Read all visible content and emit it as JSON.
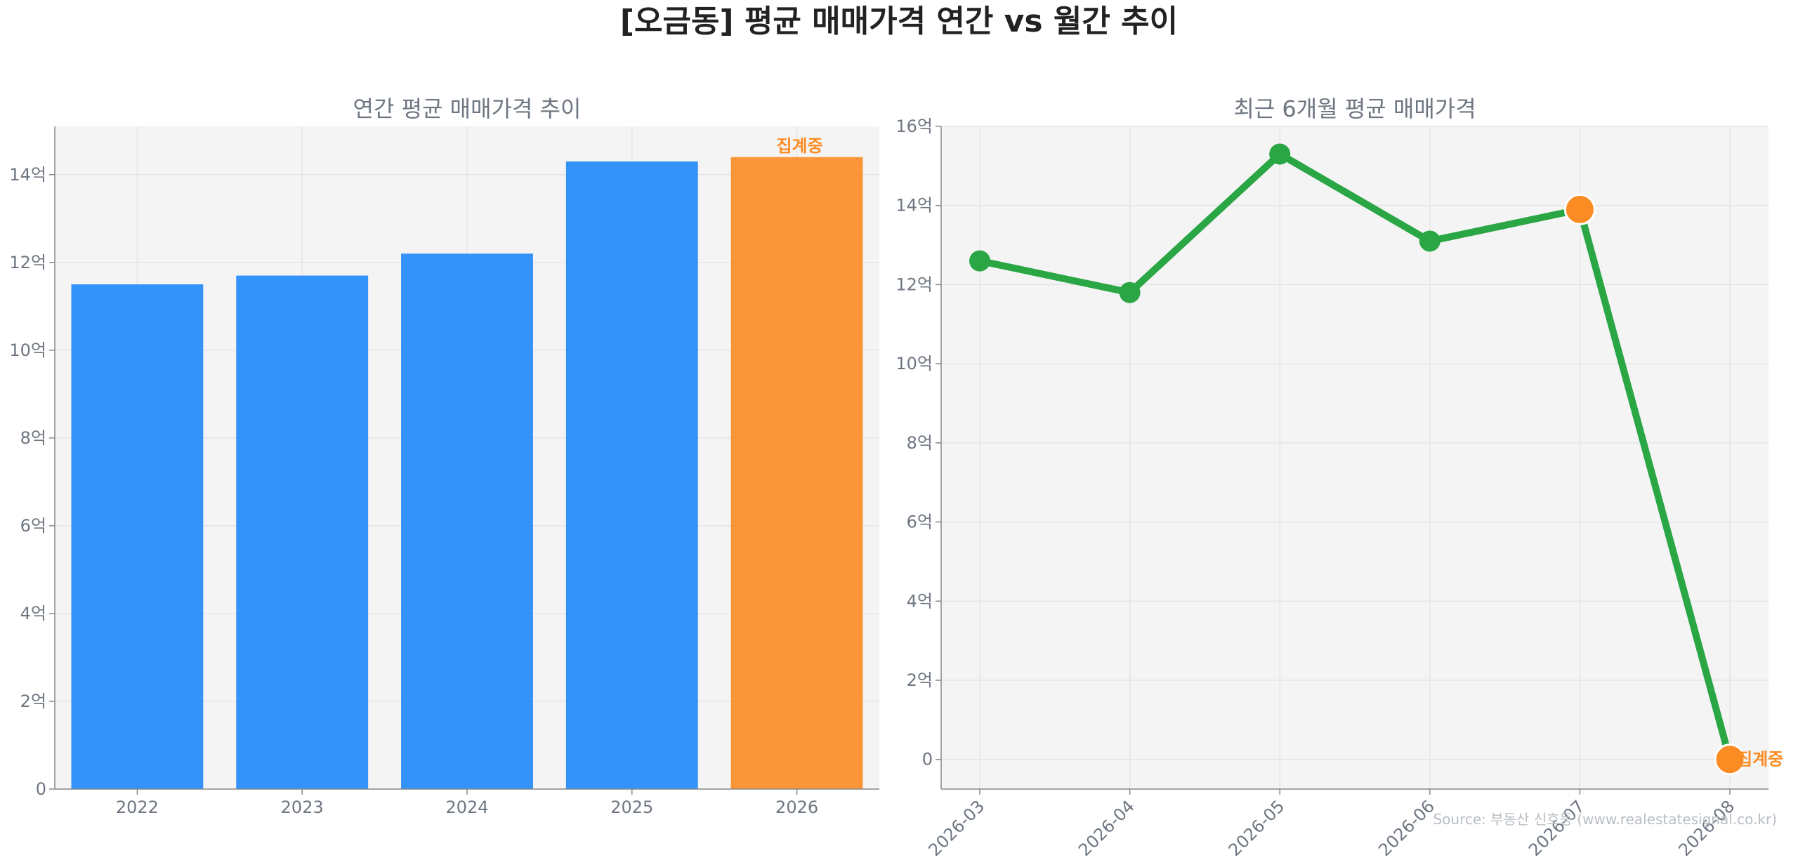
{
  "title": "[오금동] 평균 매매가격 연간 vs 월간 추이",
  "source": "Source: 부동산 신호등 (www.realestatesignal.co.kr)",
  "colors": {
    "bar": "#1e88fa",
    "highlight": "#fb8c23",
    "line": "#2aa644",
    "panel_bg": "#f4f4f4",
    "grid": "#e2e2e2",
    "axis": "#888888"
  },
  "chart_data": [
    {
      "type": "bar",
      "title": "연간 평균 매매가격 추이",
      "categories": [
        "2022",
        "2023",
        "2024",
        "2025",
        "2026"
      ],
      "values": [
        11.5,
        11.7,
        12.2,
        14.3,
        14.4
      ],
      "unit": "억",
      "ylim": [
        0,
        15.1
      ],
      "yticks": [
        0,
        2,
        4,
        6,
        8,
        10,
        12,
        14
      ],
      "ytick_labels": [
        "0",
        "2억",
        "4억",
        "6억",
        "8억",
        "10억",
        "12억",
        "14억"
      ],
      "highlight_index": 4,
      "highlight_label": "집계중",
      "grid": true
    },
    {
      "type": "line",
      "title": "최근 6개월 평균 매매가격",
      "x": [
        "2026-03",
        "2026-04",
        "2026-05",
        "2026-06",
        "2026-07",
        "2026-08"
      ],
      "values": [
        12.6,
        11.8,
        15.3,
        13.1,
        13.9,
        0
      ],
      "unit": "억",
      "ylim": [
        -0.75,
        16
      ],
      "yticks": [
        0,
        2,
        4,
        6,
        8,
        10,
        12,
        14,
        16
      ],
      "ytick_labels": [
        "0",
        "2억",
        "4억",
        "6억",
        "8억",
        "10억",
        "12억",
        "14억",
        "16억"
      ],
      "highlight_indices": [
        4,
        5
      ],
      "highlight_label": "집계중",
      "grid": true
    }
  ]
}
